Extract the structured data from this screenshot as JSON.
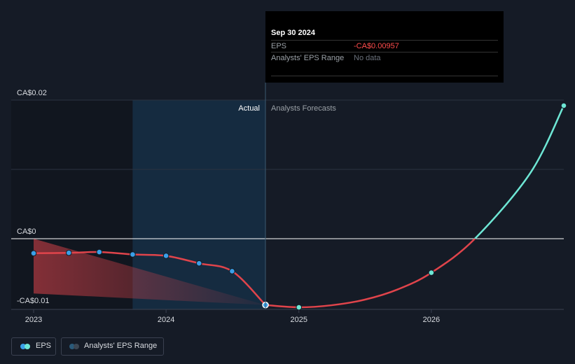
{
  "chart_data": {
    "type": "line",
    "title": "",
    "xlabel": "",
    "ylabel": "",
    "ylim": [
      -0.0102,
      0.02
    ],
    "xlim": [
      "2022-12-31",
      "2026-12-31"
    ],
    "y_ticks": [
      {
        "value": 0.02,
        "label": "CA$0.02"
      },
      {
        "value": 0,
        "label": "CA$0"
      },
      {
        "value": -0.01,
        "label": "-CA$0.01"
      }
    ],
    "x_ticks": [
      {
        "value": "2022-12-31",
        "label": "2023"
      },
      {
        "value": "2023-12-31",
        "label": "2024"
      },
      {
        "value": "2024-12-31",
        "label": "2025"
      },
      {
        "value": "2025-12-31",
        "label": "2026"
      }
    ],
    "grid": true,
    "legend_position": "bottom-left",
    "sections": {
      "actual": "Actual",
      "forecast": "Analysts Forecasts"
    },
    "series": [
      {
        "name": "EPS",
        "color": "#e0444b",
        "points": [
          {
            "x": "2022-12-31",
            "y": -0.0021
          },
          {
            "x": "2023-04-07",
            "y": -0.00204
          },
          {
            "x": "2023-06-30",
            "y": -0.00192
          },
          {
            "x": "2023-09-30",
            "y": -0.00227
          },
          {
            "x": "2023-12-31",
            "y": -0.00247
          },
          {
            "x": "2024-03-31",
            "y": -0.00355
          },
          {
            "x": "2024-06-30",
            "y": -0.00469
          },
          {
            "x": "2024-09-30",
            "y": -0.00957
          }
        ]
      },
      {
        "name": "EPS forecast",
        "color_negative": "#e0444b",
        "color_positive": "#6ee7d5",
        "points": [
          {
            "x": "2024-09-30",
            "y": -0.00957
          },
          {
            "x": "2024-12-31",
            "y": -0.0099
          },
          {
            "x": "2025-03-31",
            "y": -0.0096
          },
          {
            "x": "2025-06-30",
            "y": -0.0088
          },
          {
            "x": "2025-09-30",
            "y": -0.0073
          },
          {
            "x": "2025-12-31",
            "y": -0.0049
          },
          {
            "x": "2026-04-30",
            "y": 0.0
          },
          {
            "x": "2026-09-30",
            "y": 0.0095
          },
          {
            "x": "2026-12-31",
            "y": 0.0192
          }
        ],
        "markers": [
          {
            "x": "2024-12-31",
            "y": -0.0099
          },
          {
            "x": "2025-12-31",
            "y": -0.0049
          },
          {
            "x": "2026-12-31",
            "y": 0.0192
          }
        ]
      }
    ],
    "range_band": {
      "name": "Analysts' EPS Range",
      "color": "#e0444b",
      "upper": [
        {
          "x": "2022-12-31",
          "y": 0.0
        },
        {
          "x": "2024-09-30",
          "y": -0.00957
        }
      ],
      "lower": [
        {
          "x": "2022-12-31",
          "y": -0.0079
        },
        {
          "x": "2024-09-30",
          "y": -0.00957
        }
      ]
    },
    "highlight_region": {
      "from": "2023-09-30",
      "to": "2024-09-30"
    }
  },
  "tooltip": {
    "date": "Sep 30 2024",
    "rows": [
      {
        "label": "EPS",
        "value": "-CA$0.00957",
        "color": "#ff4c4c"
      },
      {
        "label": "Analysts' EPS Range",
        "value": "No data",
        "color": "#6b717b"
      }
    ]
  },
  "legend": [
    {
      "label": "EPS",
      "dot_color": "#3aa0e8",
      "dot_color2": "#6ee7d5"
    },
    {
      "label": "Analysts' EPS Range",
      "dot_color": "#2a5a7a",
      "dot_color2": "#3c4652"
    }
  ]
}
